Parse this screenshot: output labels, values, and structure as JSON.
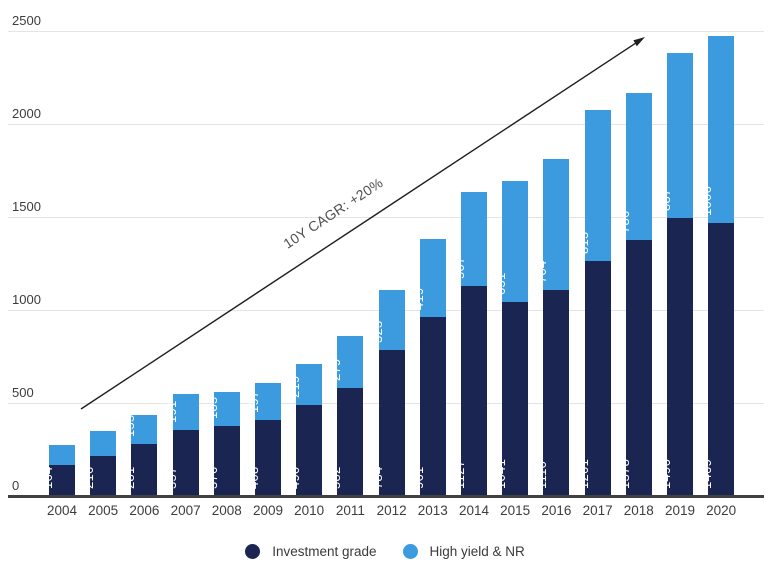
{
  "chart_data": {
    "type": "bar",
    "stacked": true,
    "title": "",
    "xlabel": "",
    "ylabel": "",
    "categories": [
      "2004",
      "2005",
      "2006",
      "2007",
      "2008",
      "2009",
      "2010",
      "2011",
      "2012",
      "2013",
      "2014",
      "2015",
      "2016",
      "2017",
      "2018",
      "2019",
      "2020"
    ],
    "series": [
      {
        "name": "Investment grade",
        "color": "#1b2551",
        "values": [
          164,
          216,
          281,
          357,
          376,
          408,
          490,
          582,
          784,
          961,
          1127,
          1041,
          1110,
          1261,
          1378,
          1496,
          1469
        ],
        "data_labels": [
          "164",
          "216",
          "281",
          "357",
          "376",
          "408",
          "490",
          "582",
          "784",
          "961",
          "1127",
          "1041",
          "1110",
          "1261",
          "1378",
          "1496",
          "1469"
        ]
      },
      {
        "name": "High yield & NR",
        "color": "#3b9bde",
        "values": [
          108,
          134,
          155,
          191,
          185,
          197,
          219,
          279,
          323,
          419,
          507,
          651,
          704,
          815,
          786,
          887,
          1006
        ],
        "data_labels": [
          "",
          "",
          "155",
          "191",
          "185",
          "197",
          "219",
          "279",
          "323",
          "419",
          "507",
          "651",
          "704",
          "815",
          "786",
          "887",
          "1006"
        ]
      }
    ],
    "ylim": [
      0,
      2500
    ],
    "yticks": [
      0,
      500,
      1000,
      1500,
      2000,
      2500
    ],
    "ytick_labels": [
      "0",
      "500",
      "1000",
      "1500",
      "2000",
      "2500"
    ],
    "grid": true,
    "legend_position": "bottom",
    "annotation": {
      "text": "10Y CAGR: +20%",
      "shape": "arrow-up-right"
    }
  },
  "legend": {
    "items": [
      {
        "label": "Investment grade",
        "color": "#1b2551"
      },
      {
        "label": "High yield & NR",
        "color": "#3b9bde"
      }
    ]
  }
}
